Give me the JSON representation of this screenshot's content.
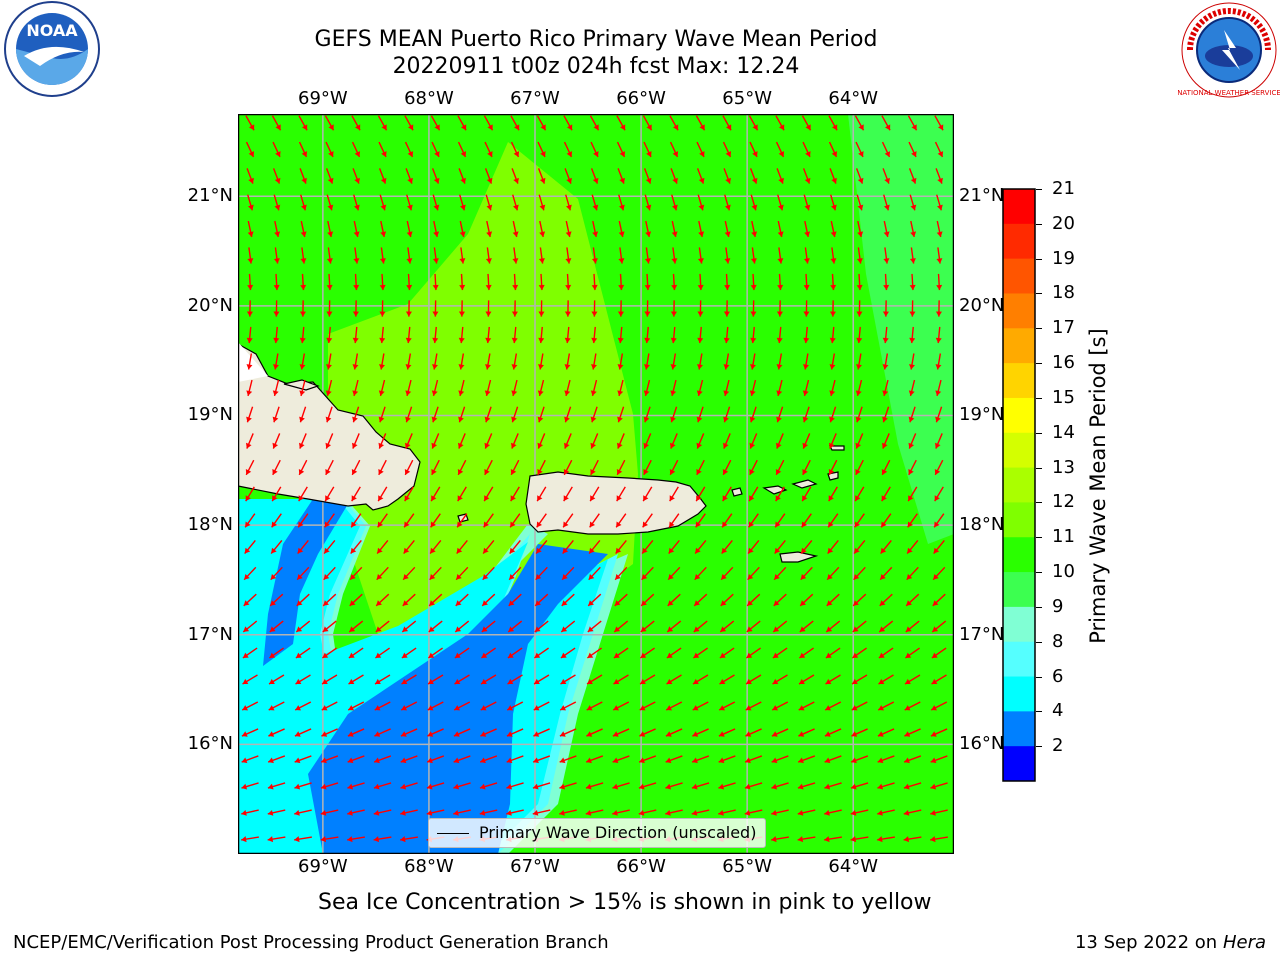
{
  "header": {
    "title_line1": "GEFS MEAN Puerto Rico Primary Wave Mean Period",
    "title_line2": "20220911 t00z 024h fcst   Max: 12.24"
  },
  "logos": {
    "left": "NOAA",
    "right": "NATIONAL WEATHER SERVICE"
  },
  "map": {
    "lon_labels": [
      "69°W",
      "68°W",
      "67°W",
      "66°W",
      "65°W",
      "64°W"
    ],
    "lat_labels": [
      "21°N",
      "20°N",
      "19°N",
      "18°N",
      "17°N",
      "16°N"
    ],
    "extent": {
      "lon": [
        -69.8,
        -63.05
      ],
      "lat": [
        15.0,
        21.75
      ]
    },
    "arrow_color": "#ff0000",
    "land_color": "#eeecdc",
    "legend_label": "Primary Wave Direction (unscaled)"
  },
  "colorbar": {
    "label": "Primary Wave Mean Period [s]",
    "ticks": [
      "21",
      "20",
      "19",
      "18",
      "17",
      "16",
      "15",
      "14",
      "13",
      "12",
      "11",
      "10",
      "9",
      "8",
      "6",
      "4",
      "2"
    ],
    "colors": [
      "#ff0000",
      "#ff2a00",
      "#ff5500",
      "#ff7f00",
      "#ffaa00",
      "#ffd400",
      "#ffff00",
      "#d4ff00",
      "#aaff00",
      "#7fff00",
      "#2aff00",
      "#3cff50",
      "#80ffd4",
      "#55ffff",
      "#00ffff",
      "#0080ff",
      "#0000ff"
    ]
  },
  "note": "Sea Ice Concentration > 15% is shown in pink to yellow",
  "footer": {
    "left": "NCEP/EMC/Verification Post Processing Product Generation Branch",
    "right_date": "13 Sep 2022 on",
    "right_host": "Hera"
  }
}
